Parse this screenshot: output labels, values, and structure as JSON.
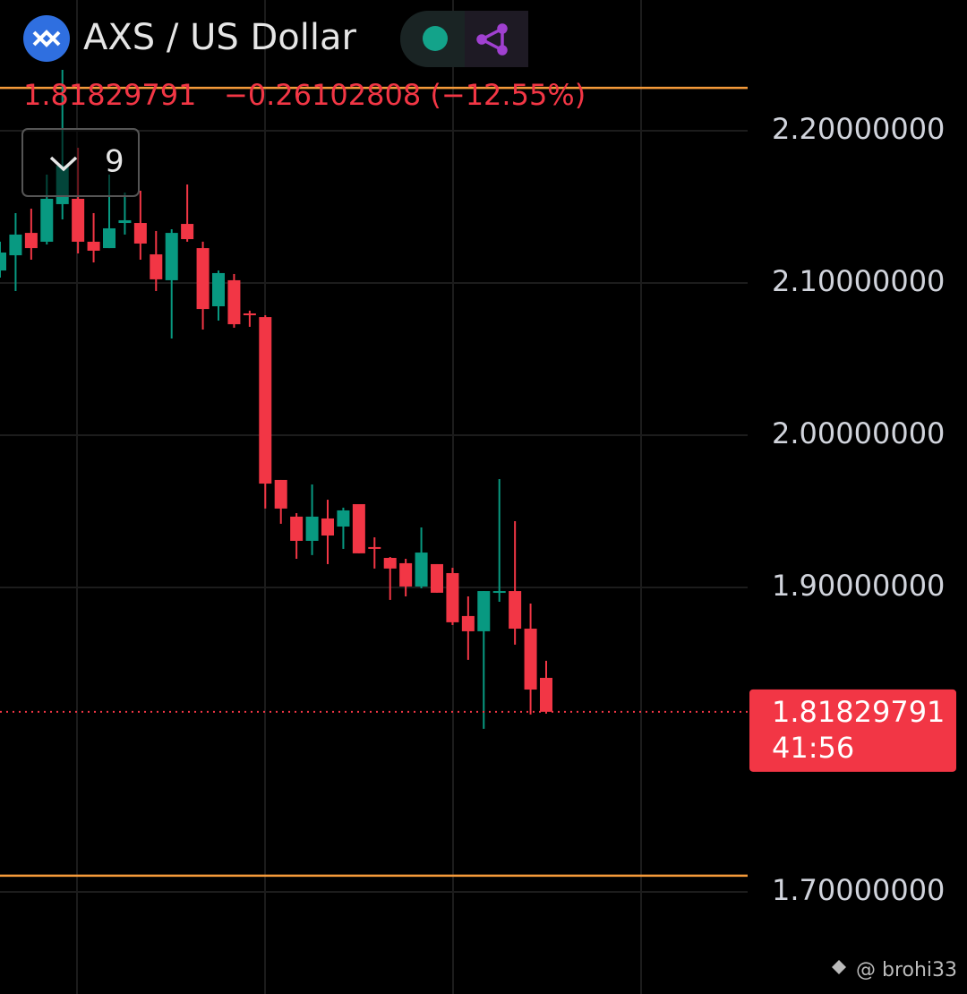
{
  "chart_data": {
    "type": "candlestick",
    "title": "AXS / US Dollar",
    "last_price": 1.81829791,
    "change_label": "−0.26102808 (−12.55%)",
    "countdown": "41:56",
    "interval": "9",
    "watermark": "@ brohi33",
    "up_color": "#089981",
    "down_color": "#f23645",
    "series": [
      {
        "open": [
          2.1082,
          2.1182,
          2.1329,
          2.1271,
          2.1518,
          2.1553,
          2.1271,
          2.1229,
          2.1394,
          2.1394,
          2.1188,
          2.1018,
          2.1388,
          2.1229,
          2.0847,
          2.1018,
          2.08,
          2.0776,
          1.9706,
          1.9465,
          1.9306,
          1.9453,
          1.94,
          1.9547,
          1.9265,
          1.9194,
          1.9159,
          1.9006,
          1.9153,
          1.9094,
          1.8812,
          1.8712,
          1.8965,
          1.8976,
          1.8729,
          1.8406
        ],
        "high": [
          2.1271,
          2.1459,
          2.1488,
          2.1712,
          2.24,
          2.1888,
          2.1459,
          2.1712,
          2.1594,
          2.1606,
          2.1341,
          2.1353,
          2.1647,
          2.1271,
          2.1082,
          2.1059,
          2.0818,
          2.0788,
          1.9706,
          1.9488,
          1.9676,
          1.9576,
          1.9524,
          1.9547,
          1.9329,
          1.92,
          1.9188,
          1.9394,
          1.9153,
          1.9129,
          1.8941,
          1.8976,
          1.9712,
          1.9435,
          1.8894,
          1.8518
        ],
        "low": [
          2.1035,
          2.0947,
          2.1153,
          2.1253,
          2.1418,
          2.1194,
          2.1135,
          2.1229,
          2.1318,
          2.1153,
          2.0947,
          2.0635,
          2.1271,
          2.0694,
          2.0753,
          2.0706,
          2.0712,
          1.9518,
          1.9418,
          1.9188,
          1.9212,
          1.9153,
          1.9253,
          1.9224,
          1.9124,
          1.8918,
          1.8941,
          1.8994,
          1.8965,
          1.8753,
          1.8524,
          1.8071,
          1.8906,
          1.8624,
          1.8165,
          1.8171
        ],
        "close": [
          2.12,
          2.1318,
          2.1229,
          2.1553,
          2.1771,
          2.1271,
          2.1212,
          2.1359,
          2.1412,
          2.1259,
          2.1024,
          2.1329,
          2.1288,
          2.0829,
          2.1065,
          2.0729,
          2.0788,
          1.9682,
          1.9518,
          1.9306,
          1.9465,
          1.9341,
          1.9506,
          1.9224,
          1.9259,
          1.9124,
          1.9006,
          1.9229,
          1.8965,
          1.8771,
          1.8712,
          1.8976,
          1.8976,
          1.8729,
          1.8329,
          1.8183
        ]
      }
    ],
    "ylim": [
      1.6329,
      2.2859
    ],
    "yticks": [
      {
        "value": 2.2,
        "label": "2.20000000"
      },
      {
        "value": 2.1,
        "label": "2.10000000"
      },
      {
        "value": 2.0,
        "label": "2.00000000"
      },
      {
        "value": 1.9,
        "label": "1.90000000"
      },
      {
        "value": 1.7,
        "label": "1.70000000"
      }
    ],
    "grid": true,
    "hlines": [
      2.2282,
      1.7106
    ],
    "hline_color": "#f59a3a"
  }
}
